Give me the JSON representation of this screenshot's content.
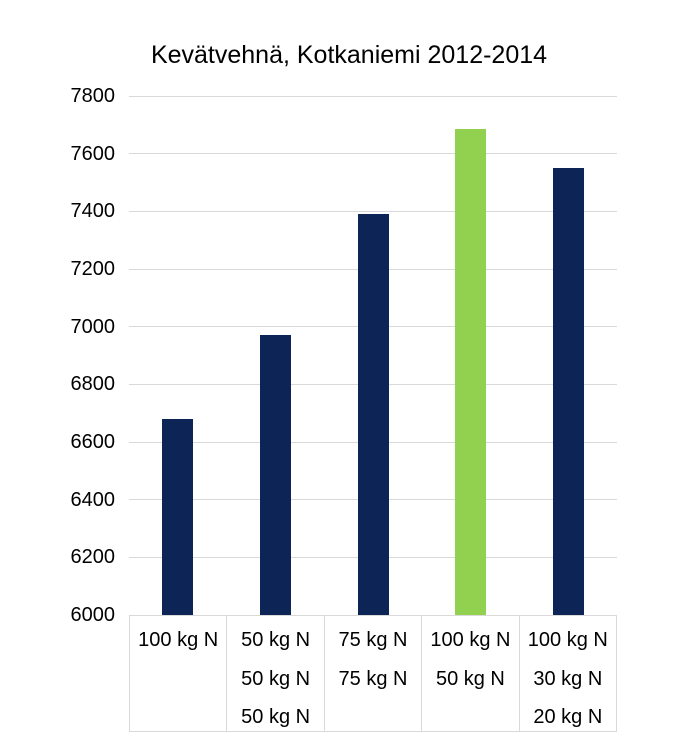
{
  "chart_data": {
    "type": "bar",
    "title": "Kevätvehnä, Kotkaniemi 2012-2014",
    "categories": [
      [
        "100 kg N"
      ],
      [
        "50 kg N",
        "50 kg N",
        "50 kg N"
      ],
      [
        "75 kg N",
        "75 kg N"
      ],
      [
        "100 kg N",
        "50 kg N"
      ],
      [
        "100 kg N",
        "30 kg N",
        "20 kg N"
      ]
    ],
    "values": [
      6680,
      6970,
      7390,
      7685,
      7550
    ],
    "bar_colors": [
      "#0d2456",
      "#0d2456",
      "#0d2456",
      "#92d050",
      "#0d2456"
    ],
    "ylim": [
      6000,
      7800
    ],
    "ytick_step": 200,
    "ytick_labels": [
      "7800",
      "7600",
      "7400",
      "7200",
      "7000",
      "6800",
      "6600",
      "6400",
      "6200",
      "6000"
    ],
    "xlabel": "",
    "ylabel": "",
    "grid": true,
    "grid_color": "#d9d9d9",
    "title_color": "#000000",
    "legend": "none"
  }
}
